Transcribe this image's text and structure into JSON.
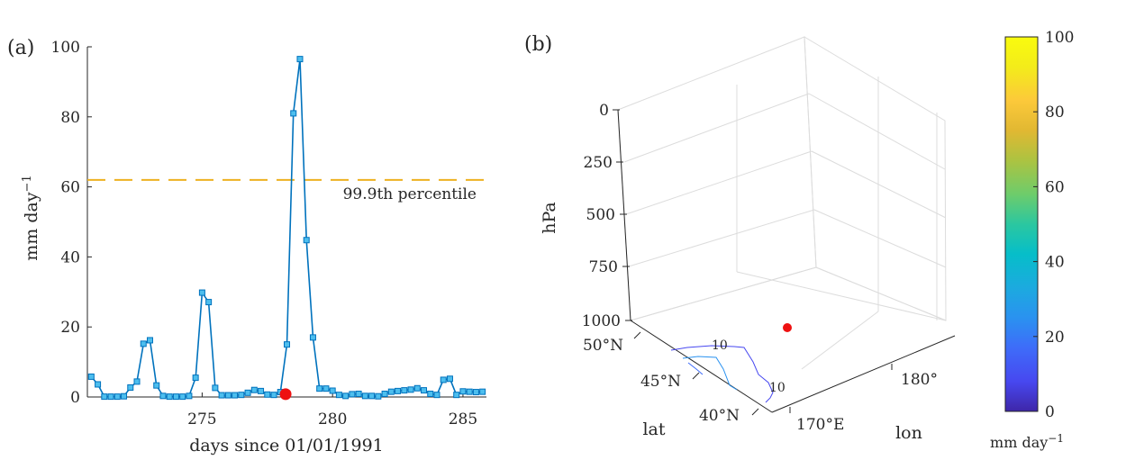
{
  "chart_data": [
    {
      "panel_label": "(a)",
      "type": "line",
      "xlabel": "days since 01/01/1991",
      "ylabel_main": "mm day",
      "ylabel_sup": "−1",
      "xlim": [
        270.6,
        285.9
      ],
      "ylim": [
        0,
        100
      ],
      "xticks": [
        275,
        280,
        285
      ],
      "yticks": [
        0,
        20,
        40,
        60,
        80,
        100
      ],
      "xtick_labels": [
        "275",
        "280",
        "285"
      ],
      "ytick_labels": [
        "0",
        "20",
        "40",
        "60",
        "80",
        "100"
      ],
      "series_color": "#0072BD",
      "x": [
        270.75,
        271.0,
        271.25,
        271.5,
        271.75,
        272.0,
        272.25,
        272.5,
        272.75,
        273.0,
        273.25,
        273.5,
        273.75,
        274.0,
        274.25,
        274.5,
        274.75,
        275.0,
        275.25,
        275.5,
        275.75,
        276.0,
        276.25,
        276.5,
        276.75,
        277.0,
        277.25,
        277.5,
        277.75,
        278.0,
        278.25,
        278.5,
        278.75,
        279.0,
        279.25,
        279.5,
        279.75,
        280.0,
        280.25,
        280.5,
        280.75,
        281.0,
        281.25,
        281.5,
        281.75,
        282.0,
        282.25,
        282.5,
        282.75,
        283.0,
        283.25,
        283.5,
        283.75,
        284.0,
        284.25,
        284.5,
        284.75,
        285.0,
        285.25,
        285.5,
        285.75
      ],
      "y": [
        5.8,
        3.6,
        0.1,
        0.1,
        0.1,
        0.2,
        2.7,
        4.4,
        15.2,
        16.2,
        3.3,
        0.3,
        0.1,
        0.1,
        0.1,
        0.3,
        5.5,
        29.8,
        27.1,
        2.6,
        0.5,
        0.5,
        0.5,
        0.6,
        1.2,
        2.0,
        1.7,
        0.7,
        0.6,
        1.4,
        15.0,
        81.0,
        96.5,
        44.8,
        17.0,
        2.4,
        2.4,
        1.8,
        0.6,
        0.3,
        0.8,
        0.9,
        0.3,
        0.3,
        0.2,
        0.9,
        1.5,
        1.7,
        1.9,
        2.1,
        2.5,
        1.9,
        0.9,
        0.6,
        4.9,
        5.2,
        0.6,
        1.6,
        1.5,
        1.4,
        1.5
      ],
      "percentile_value": 62,
      "percentile_label": "99.9th percentile",
      "percentile_color": "#EDB120",
      "event_marker": {
        "x": 278.2,
        "y": 0.8,
        "color": "#EE1111"
      }
    },
    {
      "panel_label": "(b)",
      "type": "scatter",
      "zlabel": "hPa",
      "ztick_labels": [
        "0",
        "250",
        "500",
        "750",
        "1000"
      ],
      "lat_label": "lat",
      "lat_tick_labels": [
        "50°N",
        "45°N",
        "40°N"
      ],
      "lon_label": "lon",
      "lon_tick_labels": [
        "180°",
        "170°E"
      ],
      "contour_labels": [
        "10",
        "10"
      ],
      "colorbar": {
        "ticks": [
          0,
          20,
          40,
          60,
          80,
          100
        ],
        "tick_labels": [
          "0",
          "20",
          "40",
          "60",
          "80",
          "100"
        ],
        "label_main": "mm day",
        "label_sup": "−1",
        "colors": [
          "#3E26A8",
          "#4748F0",
          "#3E6CF9",
          "#2A92F0",
          "#1CAADF",
          "#06BEC9",
          "#2BC7A0",
          "#6ECC6B",
          "#ACC341",
          "#E1B832",
          "#FCC93A",
          "#F3EC1A",
          "#F9FB0E"
        ]
      },
      "point_color": "#EE1111"
    }
  ]
}
